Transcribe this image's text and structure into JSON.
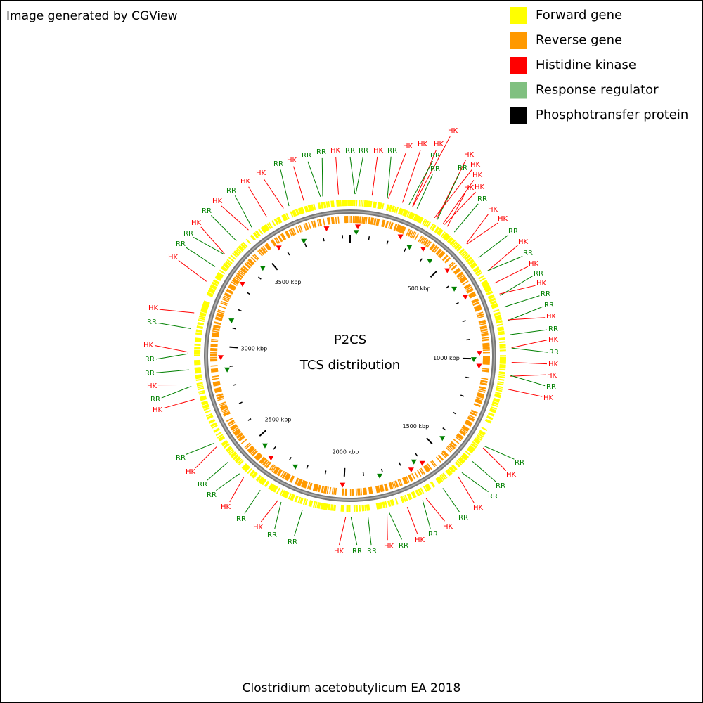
{
  "header": {
    "text": "Image generated by CGView"
  },
  "legend": [
    {
      "label": "Forward gene",
      "color": "#ffff00"
    },
    {
      "label": "Reverse gene",
      "color": "#ff9900"
    },
    {
      "label": "Histidine kinase",
      "color": "#ff0000"
    },
    {
      "label": "Response regulator",
      "color": "#80c080"
    },
    {
      "label": "Phosphotransfer protein",
      "color": "#000000"
    }
  ],
  "map": {
    "title": "P2CS",
    "subtitle": "TCS distribution",
    "scale_labels": [
      "500 kbp",
      "1000 kbp",
      "1500 kbp",
      "2000 kbp",
      "2500 kbp",
      "3000 kbp",
      "3500 kbp"
    ],
    "feature_labels": [
      "HK",
      "HK",
      "HK",
      "RR",
      "RR",
      "RR",
      "HK",
      "HK",
      "HK",
      "HK",
      "RR",
      "HK",
      "HK",
      "RR",
      "HK",
      "RR",
      "HK",
      "RR",
      "HK",
      "RR",
      "RR",
      "HK",
      "RR",
      "HK",
      "RR",
      "HK",
      "HK",
      "RR",
      "HK",
      "RR",
      "HK",
      "RR",
      "RR",
      "HK",
      "RR",
      "HK",
      "RR",
      "HK",
      "RR",
      "HK",
      "RR",
      "RR",
      "HK",
      "RR",
      "RR",
      "HK",
      "RR",
      "HK",
      "RR",
      "RR",
      "HK",
      "RR",
      "HK",
      "RR",
      "HK",
      "RR",
      "RR",
      "HK",
      "RR",
      "HK",
      "HK",
      "RR",
      "RR",
      "HK",
      "RR",
      "HK",
      "RR",
      "HK",
      "HK",
      "RR",
      "HK",
      "RR",
      "RR",
      "HK",
      "RR",
      "RR",
      "HK",
      "RR",
      "HK",
      "HK"
    ]
  },
  "footer": {
    "text": "Clostridium acetobutylicum EA 2018"
  }
}
